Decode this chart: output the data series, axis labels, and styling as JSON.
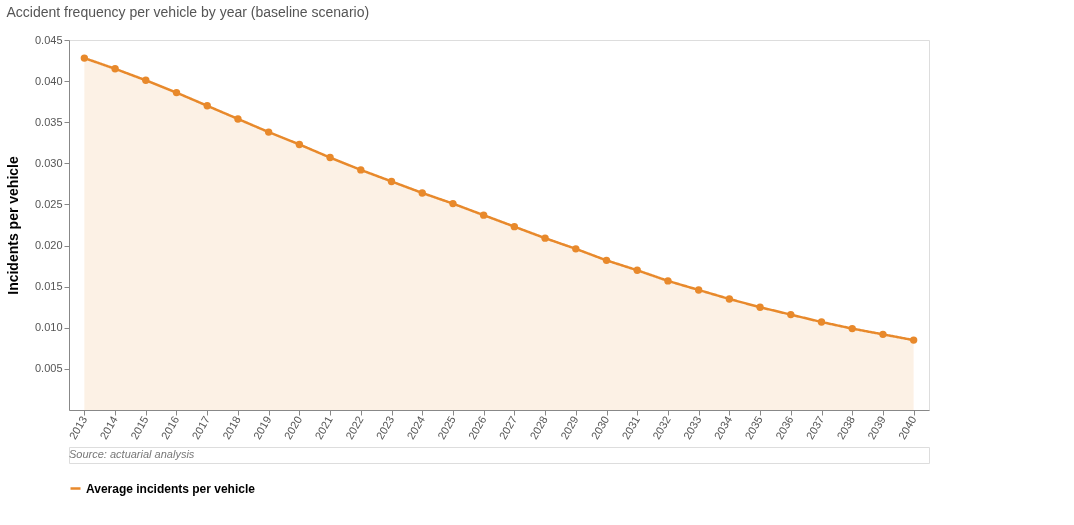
{
  "chart_data": {
    "type": "area",
    "title": "Accident frequency per vehicle by year (baseline scenario)",
    "ylabel": "Incidents per vehicle",
    "categories": [
      "2013",
      "2014",
      "2015",
      "2016",
      "2017",
      "2018",
      "2019",
      "2020",
      "2021",
      "2022",
      "2023",
      "2024",
      "2025",
      "2026",
      "2027",
      "2028",
      "2029",
      "2030",
      "2031",
      "2032",
      "2033",
      "2034",
      "2035",
      "2036",
      "2037",
      "2038",
      "2039",
      "2040"
    ],
    "series": [
      {
        "name": "Average incidents per vehicle",
        "color": "#e8892b",
        "values": [
          0.0428,
          0.0415,
          0.0401,
          0.0386,
          0.037,
          0.0354,
          0.0338,
          0.0323,
          0.0307,
          0.0292,
          0.0278,
          0.0264,
          0.0251,
          0.0237,
          0.0223,
          0.0209,
          0.0196,
          0.0182,
          0.017,
          0.0157,
          0.0146,
          0.0135,
          0.0125,
          0.0116,
          0.0107,
          0.0099,
          0.0092,
          0.0085
        ]
      }
    ],
    "ylim": [
      0,
      0.045
    ],
    "yticks": [
      0.005,
      {
        "value": 0.01,
        "label": "0.010"
      },
      0.015,
      {
        "value": 0.02,
        "label": "0.020"
      },
      0.025,
      {
        "value": 0.03,
        "label": "0.030"
      },
      0.035,
      {
        "value": 0.04,
        "label": "0.040"
      },
      0.045
    ],
    "grid": false,
    "legend": "bottom",
    "marker": "circle",
    "line_style": "solid",
    "annotations": [
      "Source: actuarial analysis"
    ]
  }
}
